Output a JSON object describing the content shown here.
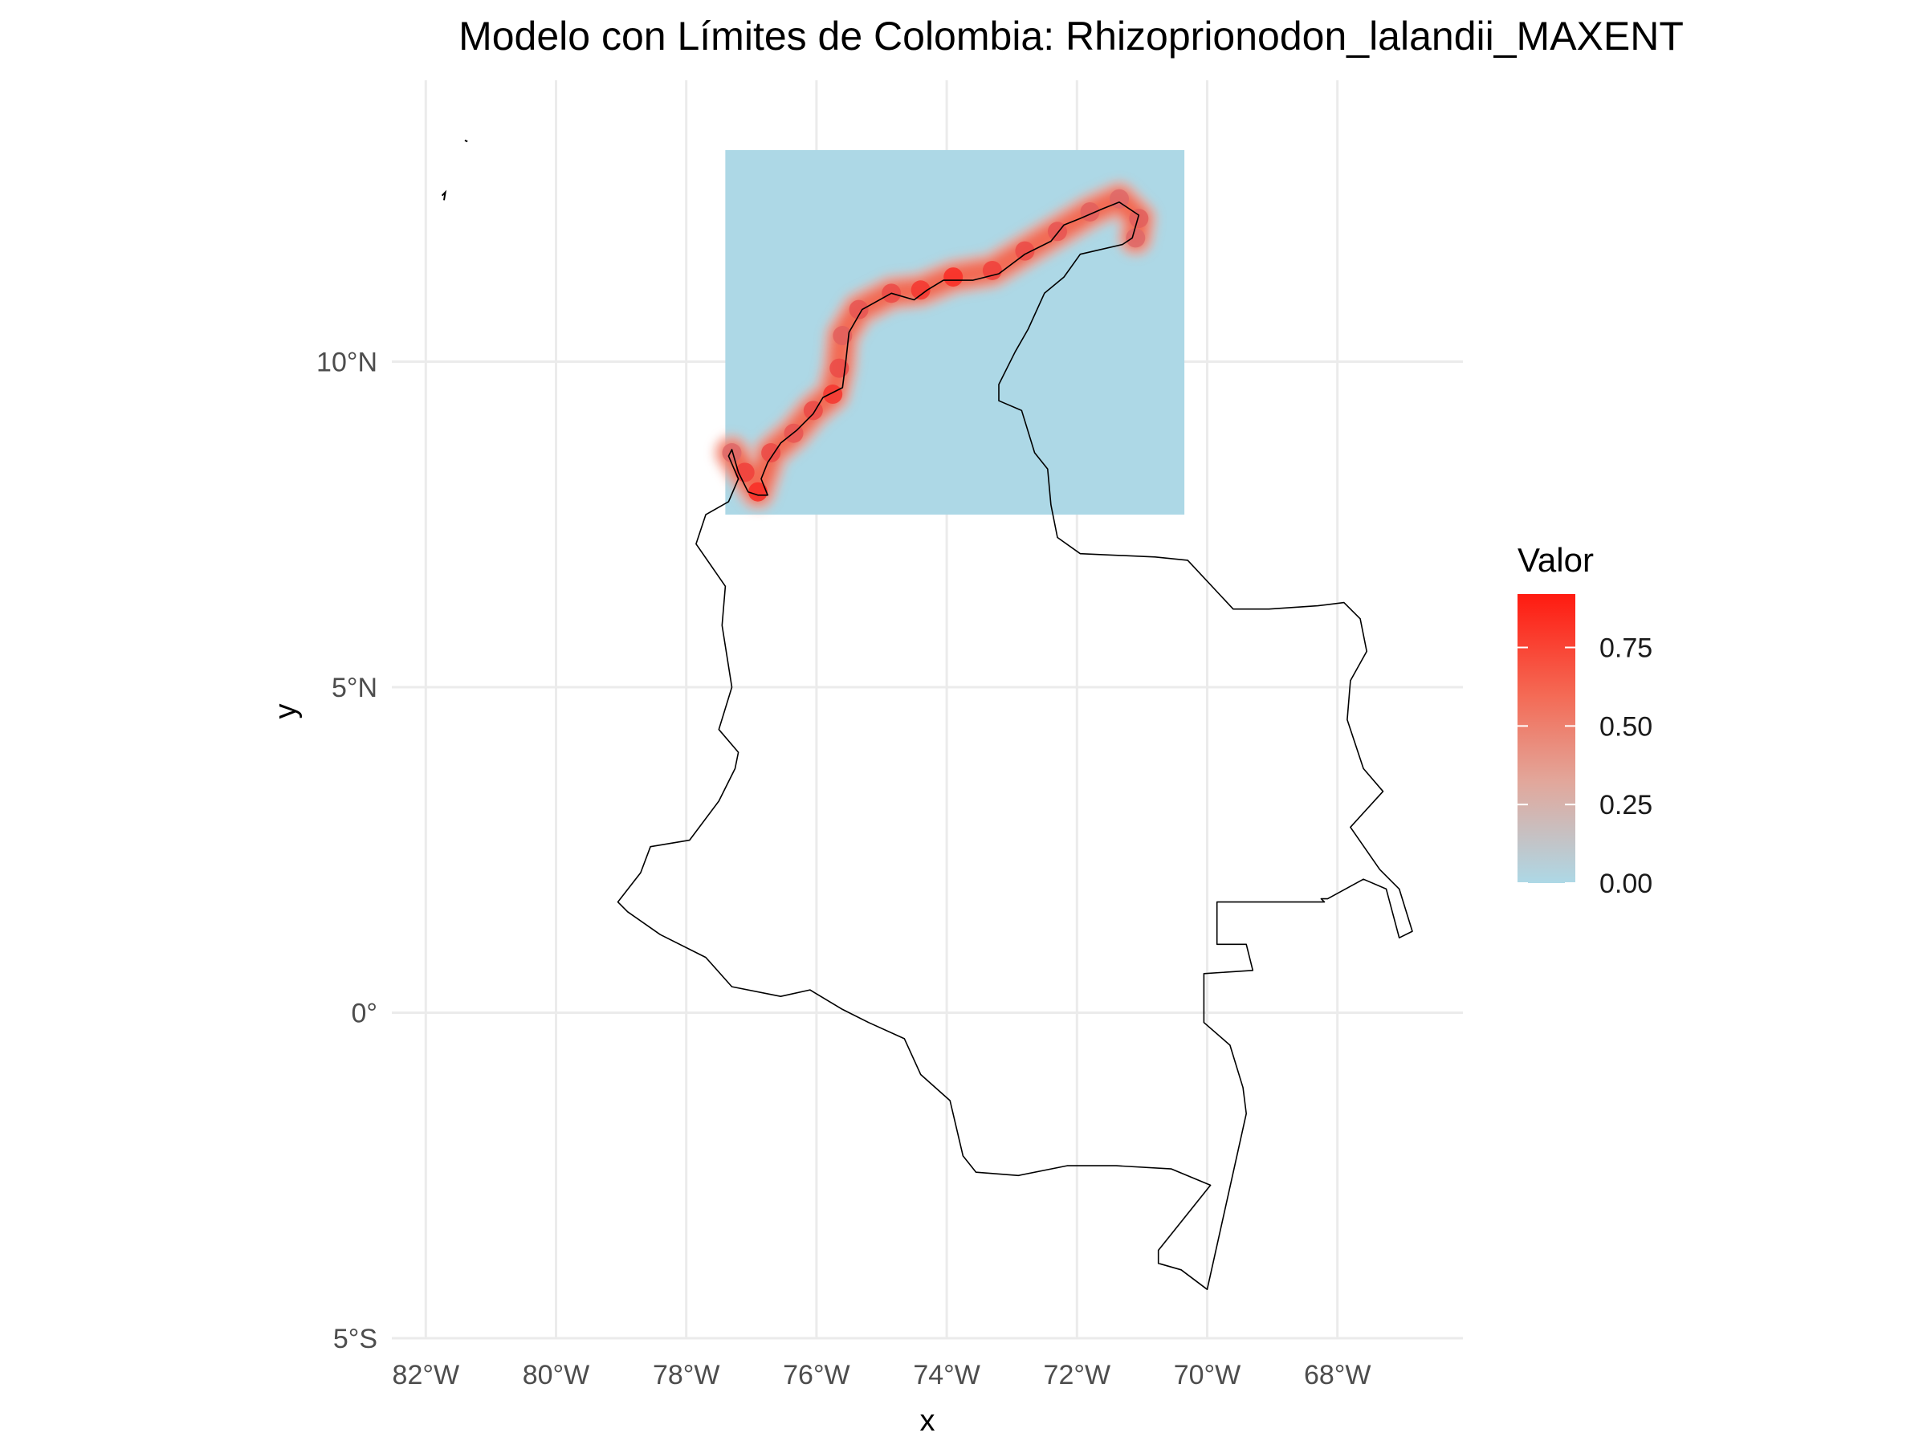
{
  "title": "Modelo con Límites de Colombia: Rhizoprionodon_lalandii_MAXENT",
  "axes": {
    "xlabel": "x",
    "ylabel": "y",
    "x_ticks": [
      {
        "value": -82,
        "label": "82°W"
      },
      {
        "value": -80,
        "label": "80°W"
      },
      {
        "value": -78,
        "label": "78°W"
      },
      {
        "value": -76,
        "label": "76°W"
      },
      {
        "value": -74,
        "label": "74°W"
      },
      {
        "value": -72,
        "label": "72°W"
      },
      {
        "value": -70,
        "label": "70°W"
      },
      {
        "value": -68,
        "label": "68°W"
      }
    ],
    "y_ticks": [
      {
        "value": 10,
        "label": "10°N"
      },
      {
        "value": 5,
        "label": "5°N"
      },
      {
        "value": 0,
        "label": "0°"
      },
      {
        "value": -5,
        "label": "5°S"
      }
    ],
    "xlim": [
      -82.5,
      -66.5
    ],
    "ylim": [
      -5.0,
      14.2
    ],
    "grid": true
  },
  "legend": {
    "title": "Valor",
    "placement": "right",
    "low_color": "#add8e6",
    "high_color": "#ff0000",
    "range": [
      0.0,
      0.92
    ],
    "ticks": [
      {
        "value": 0.75,
        "label": "0.75"
      },
      {
        "value": 0.5,
        "label": "0.50"
      },
      {
        "value": 0.25,
        "label": "0.25"
      },
      {
        "value": 0.0,
        "label": "0.00"
      }
    ]
  },
  "raster_extent": {
    "lon": [
      -77.4,
      -70.35
    ],
    "lat": [
      7.65,
      13.25
    ]
  },
  "boundary_lonlat": [
    [
      -77.3,
      8.65
    ],
    [
      -77.2,
      8.3
    ],
    [
      -77.05,
      8.0
    ],
    [
      -76.9,
      7.95
    ],
    [
      -76.75,
      7.95
    ],
    [
      -76.85,
      8.2
    ],
    [
      -76.75,
      8.45
    ],
    [
      -76.55,
      8.75
    ],
    [
      -76.3,
      8.95
    ],
    [
      -76.05,
      9.2
    ],
    [
      -75.9,
      9.45
    ],
    [
      -75.6,
      9.6
    ],
    [
      -75.55,
      10.0
    ],
    [
      -75.5,
      10.45
    ],
    [
      -75.3,
      10.8
    ],
    [
      -74.85,
      11.05
    ],
    [
      -74.5,
      10.95
    ],
    [
      -74.3,
      11.1
    ],
    [
      -74.05,
      11.25
    ],
    [
      -73.6,
      11.25
    ],
    [
      -73.2,
      11.35
    ],
    [
      -72.8,
      11.65
    ],
    [
      -72.4,
      11.85
    ],
    [
      -72.2,
      12.1
    ],
    [
      -71.95,
      12.2
    ],
    [
      -71.6,
      12.35
    ],
    [
      -71.35,
      12.45
    ],
    [
      -71.05,
      12.25
    ],
    [
      -71.15,
      11.9
    ],
    [
      -71.3,
      11.8
    ],
    [
      -71.95,
      11.65
    ],
    [
      -72.2,
      11.3
    ],
    [
      -72.5,
      11.05
    ],
    [
      -72.75,
      10.5
    ],
    [
      -72.95,
      10.15
    ],
    [
      -73.2,
      9.65
    ],
    [
      -73.2,
      9.4
    ],
    [
      -72.85,
      9.25
    ],
    [
      -72.65,
      8.6
    ],
    [
      -72.45,
      8.35
    ],
    [
      -72.4,
      7.8
    ],
    [
      -72.3,
      7.3
    ],
    [
      -71.95,
      7.05
    ],
    [
      -70.8,
      7.0
    ],
    [
      -70.3,
      6.95
    ],
    [
      -69.6,
      6.2
    ],
    [
      -69.05,
      6.2
    ],
    [
      -68.3,
      6.25
    ],
    [
      -67.9,
      6.3
    ],
    [
      -67.65,
      6.05
    ],
    [
      -67.55,
      5.55
    ],
    [
      -67.8,
      5.1
    ],
    [
      -67.85,
      4.5
    ],
    [
      -67.6,
      3.75
    ],
    [
      -67.3,
      3.4
    ],
    [
      -67.8,
      2.85
    ],
    [
      -67.35,
      2.2
    ],
    [
      -67.05,
      1.9
    ],
    [
      -66.85,
      1.25
    ],
    [
      -67.05,
      1.15
    ],
    [
      -67.25,
      1.9
    ],
    [
      -67.6,
      2.05
    ],
    [
      -68.15,
      1.75
    ],
    [
      -68.25,
      1.75
    ],
    [
      -68.2,
      1.7
    ],
    [
      -69.85,
      1.7
    ],
    [
      -69.85,
      1.05
    ],
    [
      -69.4,
      1.05
    ],
    [
      -69.3,
      0.65
    ],
    [
      -70.05,
      0.6
    ],
    [
      -70.05,
      -0.15
    ],
    [
      -69.65,
      -0.5
    ],
    [
      -69.45,
      -1.15
    ],
    [
      -69.4,
      -1.55
    ],
    [
      -70.0,
      -4.25
    ],
    [
      -70.4,
      -3.95
    ],
    [
      -70.75,
      -3.85
    ],
    [
      -70.75,
      -3.65
    ],
    [
      -69.95,
      -2.65
    ],
    [
      -70.55,
      -2.4
    ],
    [
      -71.4,
      -2.35
    ],
    [
      -72.15,
      -2.35
    ],
    [
      -72.9,
      -2.5
    ],
    [
      -73.55,
      -2.45
    ],
    [
      -73.75,
      -2.2
    ],
    [
      -73.95,
      -1.35
    ],
    [
      -74.4,
      -0.95
    ],
    [
      -74.65,
      -0.4
    ],
    [
      -75.2,
      -0.15
    ],
    [
      -75.6,
      0.05
    ],
    [
      -76.1,
      0.35
    ],
    [
      -76.55,
      0.25
    ],
    [
      -77.3,
      0.4
    ],
    [
      -77.7,
      0.85
    ],
    [
      -78.4,
      1.2
    ],
    [
      -78.9,
      1.55
    ],
    [
      -79.05,
      1.7
    ],
    [
      -78.7,
      2.15
    ],
    [
      -78.55,
      2.55
    ],
    [
      -77.95,
      2.65
    ],
    [
      -77.5,
      3.25
    ],
    [
      -77.25,
      3.75
    ],
    [
      -77.2,
      4.0
    ],
    [
      -77.5,
      4.35
    ],
    [
      -77.3,
      5.0
    ],
    [
      -77.45,
      5.95
    ],
    [
      -77.4,
      6.55
    ],
    [
      -77.85,
      7.2
    ],
    [
      -77.7,
      7.65
    ],
    [
      -77.35,
      7.85
    ],
    [
      -77.2,
      8.2
    ],
    [
      -77.35,
      8.55
    ],
    [
      -77.3,
      8.65
    ]
  ],
  "islands_lonlat": [
    [
      [
        -81.75,
        12.55
      ],
      [
        -81.7,
        12.6
      ],
      [
        -81.72,
        12.48
      ]
    ],
    [
      [
        -81.4,
        13.4
      ],
      [
        -81.36,
        13.38
      ]
    ]
  ],
  "suitability_coast": [
    {
      "lon": -77.3,
      "lat": 8.6,
      "value": 0.55
    },
    {
      "lon": -77.1,
      "lat": 8.3,
      "value": 0.75
    },
    {
      "lon": -76.9,
      "lat": 8.0,
      "value": 0.85
    },
    {
      "lon": -76.7,
      "lat": 8.6,
      "value": 0.7
    },
    {
      "lon": -76.35,
      "lat": 8.9,
      "value": 0.65
    },
    {
      "lon": -76.05,
      "lat": 9.25,
      "value": 0.7
    },
    {
      "lon": -75.75,
      "lat": 9.5,
      "value": 0.8
    },
    {
      "lon": -75.65,
      "lat": 9.9,
      "value": 0.7
    },
    {
      "lon": -75.6,
      "lat": 10.4,
      "value": 0.6
    },
    {
      "lon": -75.35,
      "lat": 10.8,
      "value": 0.65
    },
    {
      "lon": -74.85,
      "lat": 11.05,
      "value": 0.7
    },
    {
      "lon": -74.4,
      "lat": 11.1,
      "value": 0.8
    },
    {
      "lon": -73.9,
      "lat": 11.3,
      "value": 0.85
    },
    {
      "lon": -73.3,
      "lat": 11.4,
      "value": 0.75
    },
    {
      "lon": -72.8,
      "lat": 11.7,
      "value": 0.7
    },
    {
      "lon": -72.3,
      "lat": 12.0,
      "value": 0.65
    },
    {
      "lon": -71.8,
      "lat": 12.3,
      "value": 0.6
    },
    {
      "lon": -71.35,
      "lat": 12.5,
      "value": 0.55
    },
    {
      "lon": -71.05,
      "lat": 12.2,
      "value": 0.6
    },
    {
      "lon": -71.1,
      "lat": 11.9,
      "value": 0.55
    }
  ]
}
